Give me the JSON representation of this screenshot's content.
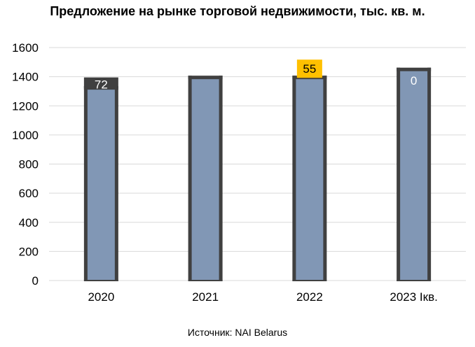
{
  "chart_data": {
    "type": "bar",
    "title": "Предложение на рынке торговой недвижимости, тыс. кв. м.",
    "categories": [
      "2020",
      "2021",
      "2022",
      "2023 Iкв."
    ],
    "stacked": true,
    "series": [
      {
        "values": [
          1323,
          1395,
          1395,
          1450
        ],
        "color": "#8197b5"
      },
      {
        "values": [
          72,
          0,
          55,
          0
        ]
      }
    ],
    "data_labels": [
      {
        "text": "72",
        "style": "dark-box"
      },
      {
        "text": "",
        "style": "none"
      },
      {
        "text": "55",
        "style": "yellow-box"
      },
      {
        "text": "0",
        "style": "inside"
      }
    ],
    "colors": {
      "bar_fill": "#8197b5",
      "bar_outline": "#404040",
      "label_dark_bg": "#404040",
      "label_yellow_bg": "#ffc000",
      "grid": "#d9d9d9"
    },
    "ylim": [
      0,
      1600
    ],
    "yticks": [
      0,
      200,
      400,
      600,
      800,
      1000,
      1200,
      1400,
      1600
    ],
    "grid": true,
    "legend": "none",
    "xlabel": "",
    "ylabel": "",
    "source": "Источник: NAI Belarus"
  }
}
